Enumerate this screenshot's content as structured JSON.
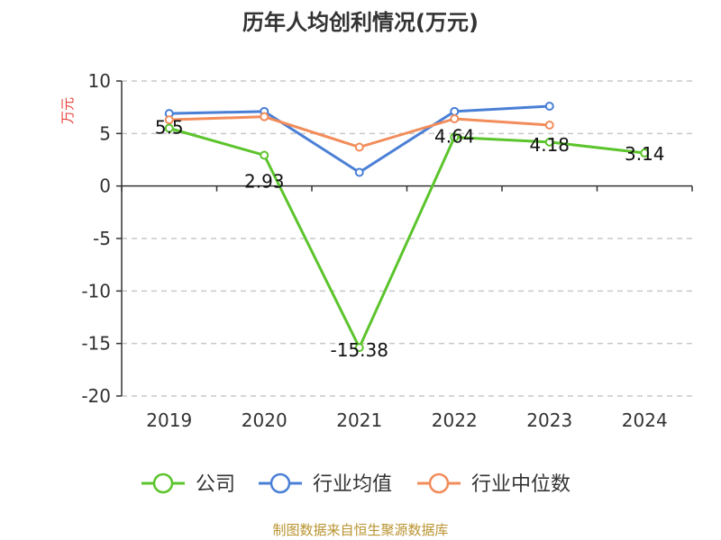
{
  "chart_data": {
    "type": "line",
    "title": "历年人均创利情况(万元)",
    "ylabel": "万元",
    "xlabel": "",
    "categories": [
      "2019",
      "2020",
      "2021",
      "2022",
      "2023",
      "2024"
    ],
    "ylim": [
      -20,
      10
    ],
    "yticks": [
      "10",
      "5",
      "0",
      "-5",
      "-10",
      "-15",
      "-20"
    ],
    "grid": "horizontal-dashed",
    "legend_position": "bottom",
    "series": [
      {
        "name": "公司",
        "color": "#5cc42c",
        "values": [
          5.5,
          2.93,
          -15.38,
          4.64,
          4.18,
          3.14
        ],
        "labels": [
          "5.5",
          "2.93",
          "-15.38",
          "4.64",
          "4.18",
          "3.14"
        ]
      },
      {
        "name": "行业均值",
        "color": "#4a7fd6",
        "values": [
          6.9,
          7.1,
          1.3,
          7.1,
          7.6,
          null
        ]
      },
      {
        "name": "行业中位数",
        "color": "#f28c5a",
        "values": [
          6.3,
          6.6,
          3.7,
          6.4,
          5.8,
          null
        ]
      }
    ]
  },
  "source": "制图数据来自恒生聚源数据库"
}
